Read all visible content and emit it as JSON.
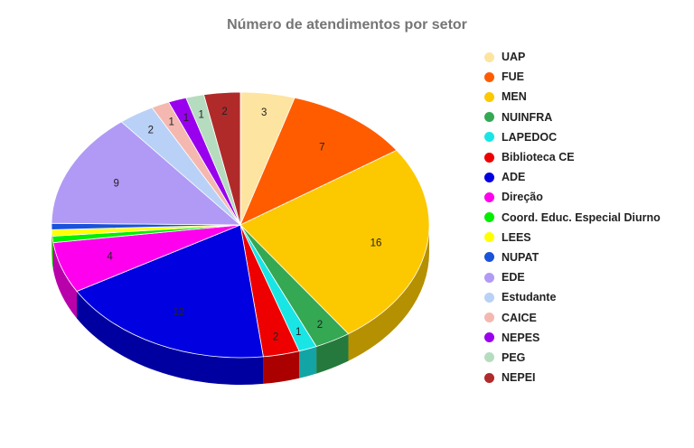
{
  "chart_data": {
    "type": "pie",
    "title": "Número de atendimentos por setor",
    "legend_position": "right",
    "slices": [
      {
        "label": "UAP",
        "value": 3,
        "color": "#fde4a0"
      },
      {
        "label": "FUE",
        "value": 7,
        "color": "#ff5c00"
      },
      {
        "label": "MEN",
        "value": 16,
        "color": "#fcc800"
      },
      {
        "label": "NUINFRA",
        "value": 2,
        "color": "#34a853"
      },
      {
        "label": "LAPEDOC",
        "value": 1,
        "color": "#1ae5e5"
      },
      {
        "label": "Biblioteca CE",
        "value": 2,
        "color": "#ee0000"
      },
      {
        "label": "ADE",
        "value": 12,
        "color": "#0000e0"
      },
      {
        "label": "Direção",
        "value": 4,
        "color": "#ff00ee"
      },
      {
        "label": "Coord. Educ. Especial Diurno",
        "value": 0.5,
        "color": "#00ee00"
      },
      {
        "label": "LEES",
        "value": 0.5,
        "color": "#ffff00"
      },
      {
        "label": "NUPAT",
        "value": 0.5,
        "color": "#1a53d9"
      },
      {
        "label": "EDE",
        "value": 9,
        "color": "#b19af5"
      },
      {
        "label": "Estudante",
        "value": 2,
        "color": "#b9d1f7"
      },
      {
        "label": "CAICE",
        "value": 1,
        "color": "#f5b8b0"
      },
      {
        "label": "NEPES",
        "value": 1,
        "color": "#9900ee"
      },
      {
        "label": "PEG",
        "value": 1,
        "color": "#b6dcc0"
      },
      {
        "label": "NEPEI",
        "value": 2,
        "color": "#b02a2a"
      }
    ],
    "slice_labels": [
      "3",
      "7",
      "16",
      "2",
      "1",
      "2",
      "12",
      "4",
      "",
      "",
      "",
      "9",
      "2",
      "1",
      "1",
      "1",
      "2"
    ]
  }
}
